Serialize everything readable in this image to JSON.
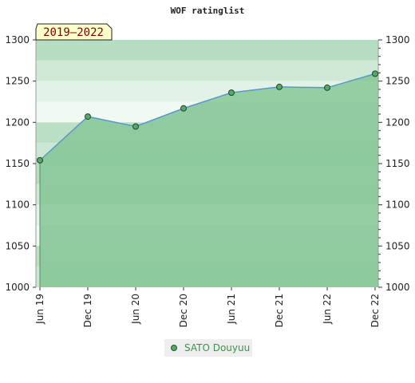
{
  "chart_data": {
    "type": "area",
    "title": "WOF ratinglist",
    "badge": "2019–2022",
    "xlabel": "",
    "ylabel": "",
    "x": [
      "Jun 19",
      "Dec 19",
      "Jun 20",
      "Dec 20",
      "Jun 21",
      "Dec 21",
      "Jun 22",
      "Dec 22"
    ],
    "series": [
      {
        "name": "SATO Douyuu",
        "values": [
          1154,
          1207,
          1195,
          1217,
          1236,
          1243,
          1242,
          1259
        ]
      }
    ],
    "ylim": [
      1000,
      1300
    ],
    "yticks": [
      1000,
      1050,
      1100,
      1150,
      1200,
      1250,
      1300
    ],
    "grid": true,
    "legend_position": "bottom-center",
    "colors": {
      "line": "#5599cc",
      "marker": "#55aa66",
      "fill": "#88c898",
      "legend_text": "#339944",
      "badge_bg": "#ffffcc",
      "badge_text": "#800000"
    }
  }
}
